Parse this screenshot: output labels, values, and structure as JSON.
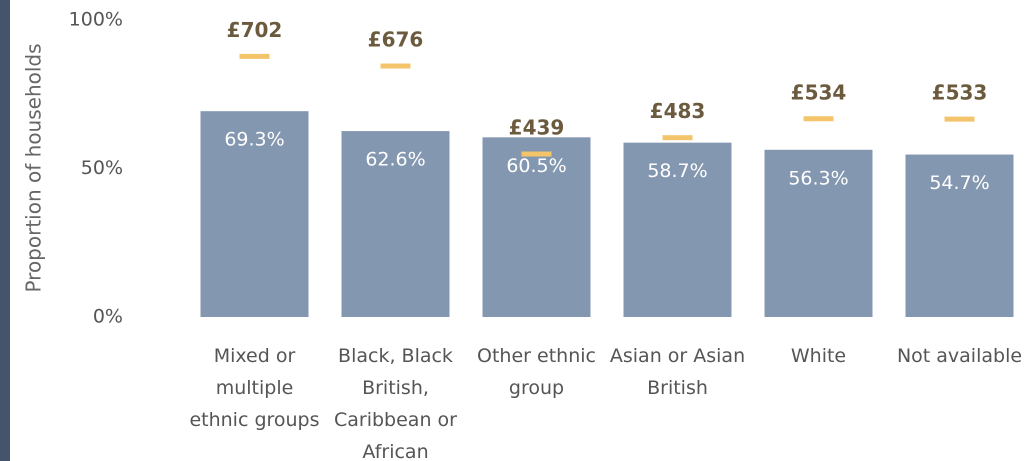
{
  "chart_data": {
    "type": "bar",
    "y_label": "Proportion of households",
    "categories": [
      "Mixed or multiple ethnic groups",
      "Black, Black British, Caribbean or African",
      "Other ethnic group",
      "Asian or Asian British",
      "White",
      "Not available"
    ],
    "series": [
      {
        "color": "#8497b0",
        "values": [
          69.3,
          62.6,
          60.5,
          58.7,
          56.3,
          54.7
        ],
        "value_labels": [
          "69.3%",
          "62.6%",
          "60.5%",
          "58.7%",
          "56.3%",
          "54.7%"
        ]
      },
      {
        "color": "#f4c46a",
        "axis": "y2",
        "values": [
          702,
          676,
          439,
          483,
          534,
          533
        ],
        "value_labels": [
          "£702",
          "£676",
          "£439",
          "£483",
          "£534",
          "£533"
        ]
      }
    ],
    "ylim": [
      0,
      100
    ],
    "yticks": [
      {
        "value": 0,
        "label": "0%"
      },
      {
        "value": 50,
        "label": "50%"
      },
      {
        "value": 100,
        "label": "100%"
      }
    ],
    "y2lim": [
      0,
      800
    ]
  }
}
